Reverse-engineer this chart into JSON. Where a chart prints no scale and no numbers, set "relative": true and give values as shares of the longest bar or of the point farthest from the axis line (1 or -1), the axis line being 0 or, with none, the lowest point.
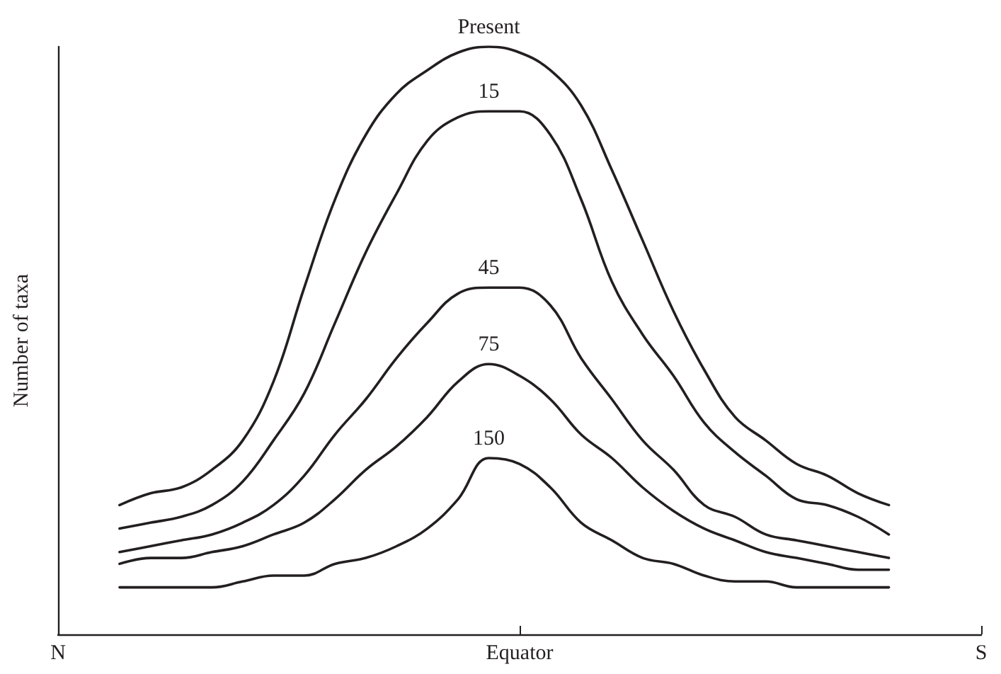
{
  "chart_data": {
    "type": "line",
    "relative": true,
    "xlabel": null,
    "ylabel": "Number of taxa",
    "categories": [
      "N",
      null,
      null,
      null,
      null,
      null,
      null,
      null,
      null,
      null,
      null,
      null,
      null,
      null,
      null,
      "Equator",
      null,
      null,
      null,
      null,
      null,
      null,
      null,
      null,
      null,
      null,
      null,
      null,
      null,
      null,
      "S"
    ],
    "series": [
      {
        "name": "Present",
        "color": "#231f20",
        "values": [
          null,
          null,
          0.22,
          0.24,
          0.25,
          0.28,
          0.33,
          0.43,
          0.59,
          0.74,
          0.85,
          0.92,
          0.96,
          0.99,
          1.0,
          0.99,
          0.96,
          0.9,
          0.79,
          0.67,
          0.55,
          0.45,
          0.37,
          0.33,
          0.29,
          0.27,
          0.24,
          0.22,
          null,
          null,
          null
        ]
      },
      {
        "name": "15",
        "color": "#231f20",
        "values": [
          null,
          null,
          0.18,
          0.19,
          0.2,
          0.22,
          0.26,
          0.33,
          0.41,
          0.53,
          0.65,
          0.75,
          0.84,
          0.88,
          0.89,
          0.89,
          0.85,
          0.74,
          0.6,
          0.51,
          0.44,
          0.36,
          0.31,
          0.27,
          0.23,
          0.22,
          0.2,
          0.17,
          null,
          null,
          null
        ]
      },
      {
        "name": "45",
        "color": "#231f20",
        "values": [
          null,
          null,
          0.14,
          0.15,
          0.16,
          0.17,
          0.19,
          0.22,
          0.27,
          0.34,
          0.4,
          0.47,
          0.53,
          0.58,
          0.59,
          0.59,
          0.56,
          0.47,
          0.4,
          0.33,
          0.28,
          0.22,
          0.2,
          0.17,
          0.16,
          0.15,
          0.14,
          0.13,
          null,
          null,
          null
        ]
      },
      {
        "name": "75",
        "color": "#231f20",
        "values": [
          null,
          null,
          0.12,
          0.13,
          0.13,
          0.14,
          0.15,
          0.17,
          0.19,
          0.23,
          0.28,
          0.32,
          0.37,
          0.43,
          0.46,
          0.44,
          0.4,
          0.34,
          0.3,
          0.25,
          0.21,
          0.18,
          0.16,
          0.14,
          0.13,
          0.12,
          0.11,
          0.11,
          null,
          null,
          null
        ]
      },
      {
        "name": "150",
        "color": "#231f20",
        "values": [
          null,
          null,
          0.08,
          0.08,
          0.08,
          0.08,
          0.09,
          0.1,
          0.1,
          0.12,
          0.13,
          0.15,
          0.18,
          0.23,
          0.3,
          0.29,
          0.25,
          0.19,
          0.16,
          0.13,
          0.12,
          0.1,
          0.09,
          0.09,
          0.08,
          0.08,
          0.08,
          0.08,
          null,
          null,
          null
        ]
      }
    ],
    "grid": false,
    "legend": false,
    "marker": "none",
    "line_style": "solid"
  }
}
